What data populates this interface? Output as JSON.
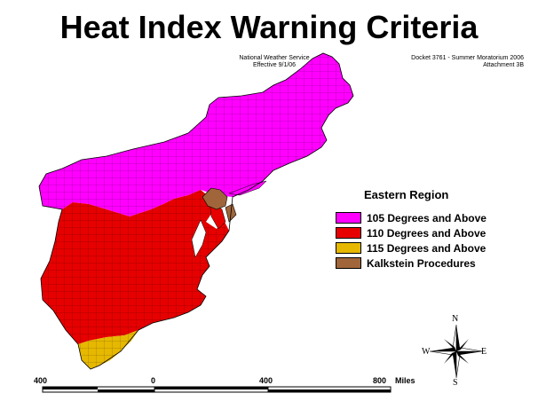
{
  "title": "Heat Index Warning Criteria",
  "note_left": [
    "National Weather Service",
    "Effective 9/1/06"
  ],
  "note_right": [
    "Docket 3761 - Summer Moratorium 2006",
    "Attachment 3B"
  ],
  "legend": {
    "title": "Eastern Region",
    "items": [
      {
        "label": "105 Degrees and Above",
        "color": "#ff00ff"
      },
      {
        "label": "110 Degrees and Above",
        "color": "#e60000"
      },
      {
        "label": "115 Degrees and Above",
        "color": "#e6b800"
      },
      {
        "label": "Kalkstein Procedures",
        "color": "#a0653a"
      }
    ]
  },
  "scale_bar": {
    "labels": [
      "400",
      "0",
      "400",
      "800"
    ],
    "unit": "Miles"
  },
  "compass": {
    "n": "N",
    "s": "S",
    "e": "E",
    "w": "W"
  }
}
